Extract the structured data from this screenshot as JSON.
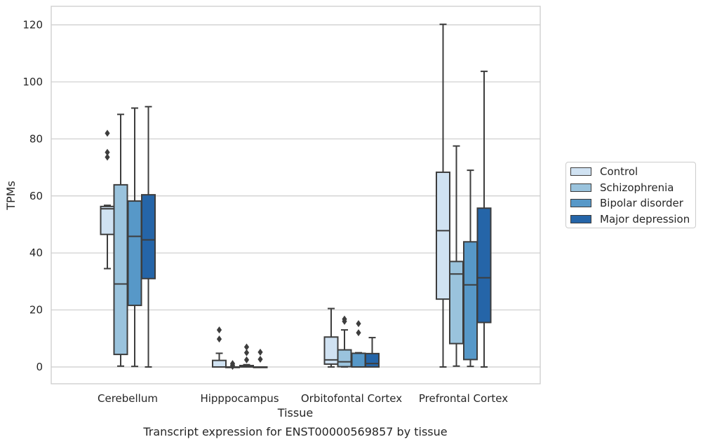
{
  "chart_data": {
    "type": "box",
    "title": "",
    "caption": "Transcript expression for ENST00000569857 by tissue",
    "xlabel": "Tissue",
    "ylabel": "TPMs",
    "ylim": [
      -5.8,
      126.5
    ],
    "yticks": [
      0,
      20,
      40,
      60,
      80,
      100,
      120
    ],
    "ytick_labels": [
      "0",
      "20",
      "40",
      "60",
      "80",
      "100",
      "120"
    ],
    "grid": "horizontal",
    "legend_position": "right",
    "categories": [
      "Cerebellum",
      "Hipppocampus",
      "Orbitofontal Cortex",
      "Prefrontal Cortex"
    ],
    "series": [
      {
        "name": "Control",
        "color": "#d0e2f2",
        "boxes": [
          {
            "whislo": 34.5,
            "q1": 46.5,
            "med": 55.5,
            "q3": 56.3,
            "whishi": 56.7,
            "fliers": [
              82.0,
              75.3,
              73.6
            ]
          },
          {
            "whislo": 0.0,
            "q1": 0.0,
            "med": 0.0,
            "q3": 2.3,
            "whishi": 4.8,
            "fliers": [
              13.0,
              9.8
            ]
          },
          {
            "whislo": 0.0,
            "q1": 1.0,
            "med": 2.5,
            "q3": 10.5,
            "whishi": 20.5,
            "fliers": []
          },
          {
            "whislo": 0.0,
            "q1": 23.8,
            "med": 47.8,
            "q3": 68.3,
            "whishi": 120.2,
            "fliers": []
          }
        ]
      },
      {
        "name": "Schizophrenia",
        "color": "#9ac3dd",
        "boxes": [
          {
            "whislo": 0.3,
            "q1": 4.4,
            "med": 29.1,
            "q3": 63.9,
            "whishi": 88.6,
            "fliers": []
          },
          {
            "whislo": 0.0,
            "q1": 0.0,
            "med": 0.0,
            "q3": 0.0,
            "whishi": 0.0,
            "fliers": [
              1.2,
              0.6,
              0.2
            ]
          },
          {
            "whislo": 0.0,
            "q1": 0.1,
            "med": 1.8,
            "q3": 6.0,
            "whishi": 13.0,
            "fliers": [
              16.8,
              16.0
            ]
          },
          {
            "whislo": 0.3,
            "q1": 8.2,
            "med": 32.6,
            "q3": 37.0,
            "whishi": 77.5,
            "fliers": []
          }
        ]
      },
      {
        "name": "Bipolar disorder",
        "color": "#5798c8",
        "boxes": [
          {
            "whislo": 0.2,
            "q1": 21.6,
            "med": 45.8,
            "q3": 58.2,
            "whishi": 90.8,
            "fliers": []
          },
          {
            "whislo": 0.0,
            "q1": 0.0,
            "med": 0.0,
            "q3": 0.5,
            "whishi": 0.8,
            "fliers": [
              7.0,
              5.0,
              2.5
            ]
          },
          {
            "whislo": 0.0,
            "q1": 0.0,
            "med": 0.0,
            "q3": 4.8,
            "whishi": 5.0,
            "fliers": [
              15.2,
              12.0
            ]
          },
          {
            "whislo": 0.2,
            "q1": 2.6,
            "med": 28.8,
            "q3": 43.9,
            "whishi": 69.0,
            "fliers": []
          }
        ]
      },
      {
        "name": "Major depression",
        "color": "#2565a8",
        "boxes": [
          {
            "whislo": 0.0,
            "q1": 31.0,
            "med": 44.6,
            "q3": 60.4,
            "whishi": 91.3,
            "fliers": []
          },
          {
            "whislo": 0.0,
            "q1": 0.0,
            "med": 0.0,
            "q3": 0.0,
            "whishi": 0.0,
            "fliers": [
              5.2,
              2.7
            ]
          },
          {
            "whislo": 0.0,
            "q1": 0.0,
            "med": 1.2,
            "q3": 4.7,
            "whishi": 10.3,
            "fliers": []
          },
          {
            "whislo": 0.0,
            "q1": 15.6,
            "med": 31.3,
            "q3": 55.7,
            "whishi": 103.7,
            "fliers": []
          }
        ]
      }
    ]
  }
}
